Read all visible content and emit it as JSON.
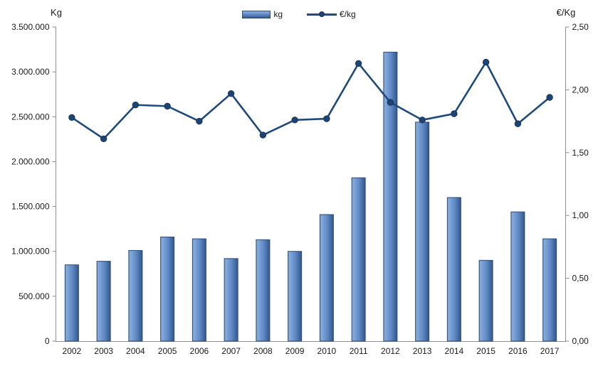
{
  "legend": {
    "kg_label": "kg",
    "eurkg_label": "€/kg"
  },
  "chart_data": {
    "type": "combo",
    "title": "",
    "categories": [
      "2002",
      "2003",
      "2004",
      "2005",
      "2006",
      "2007",
      "2008",
      "2009",
      "2010",
      "2011",
      "2012",
      "2013",
      "2014",
      "2015",
      "2016",
      "2017"
    ],
    "series": [
      {
        "name": "kg",
        "type": "bar",
        "axis": "left",
        "color": "#5e89c5",
        "values": [
          850000,
          890000,
          1010000,
          1160000,
          1140000,
          920000,
          1130000,
          1000000,
          1410000,
          1820000,
          3220000,
          2440000,
          1600000,
          900000,
          1440000,
          1140000
        ]
      },
      {
        "name": "€/kg",
        "type": "line",
        "axis": "right",
        "color": "#1f4a7c",
        "values": [
          1.78,
          1.61,
          1.88,
          1.87,
          1.75,
          1.97,
          1.64,
          1.76,
          1.77,
          2.21,
          1.9,
          1.76,
          1.81,
          2.22,
          1.73,
          1.94
        ]
      }
    ],
    "left_axis": {
      "title": "Kg",
      "range": [
        0,
        3500000
      ],
      "tick_step": 500000,
      "tick_labels": [
        "3.500.000",
        "3.000.000",
        "2.500.000",
        "2.000.000",
        "1.500.000",
        "1.000.000",
        "500.000",
        "0"
      ]
    },
    "right_axis": {
      "title": "€/Kg",
      "range": [
        0,
        2.5
      ],
      "tick_step": 0.5,
      "tick_labels": [
        "2,50",
        "2,00",
        "1,50",
        "1,00",
        "0,50",
        "0,00"
      ]
    },
    "legend_position": "top-center",
    "grid": false,
    "plot_background": "#ffffff"
  }
}
